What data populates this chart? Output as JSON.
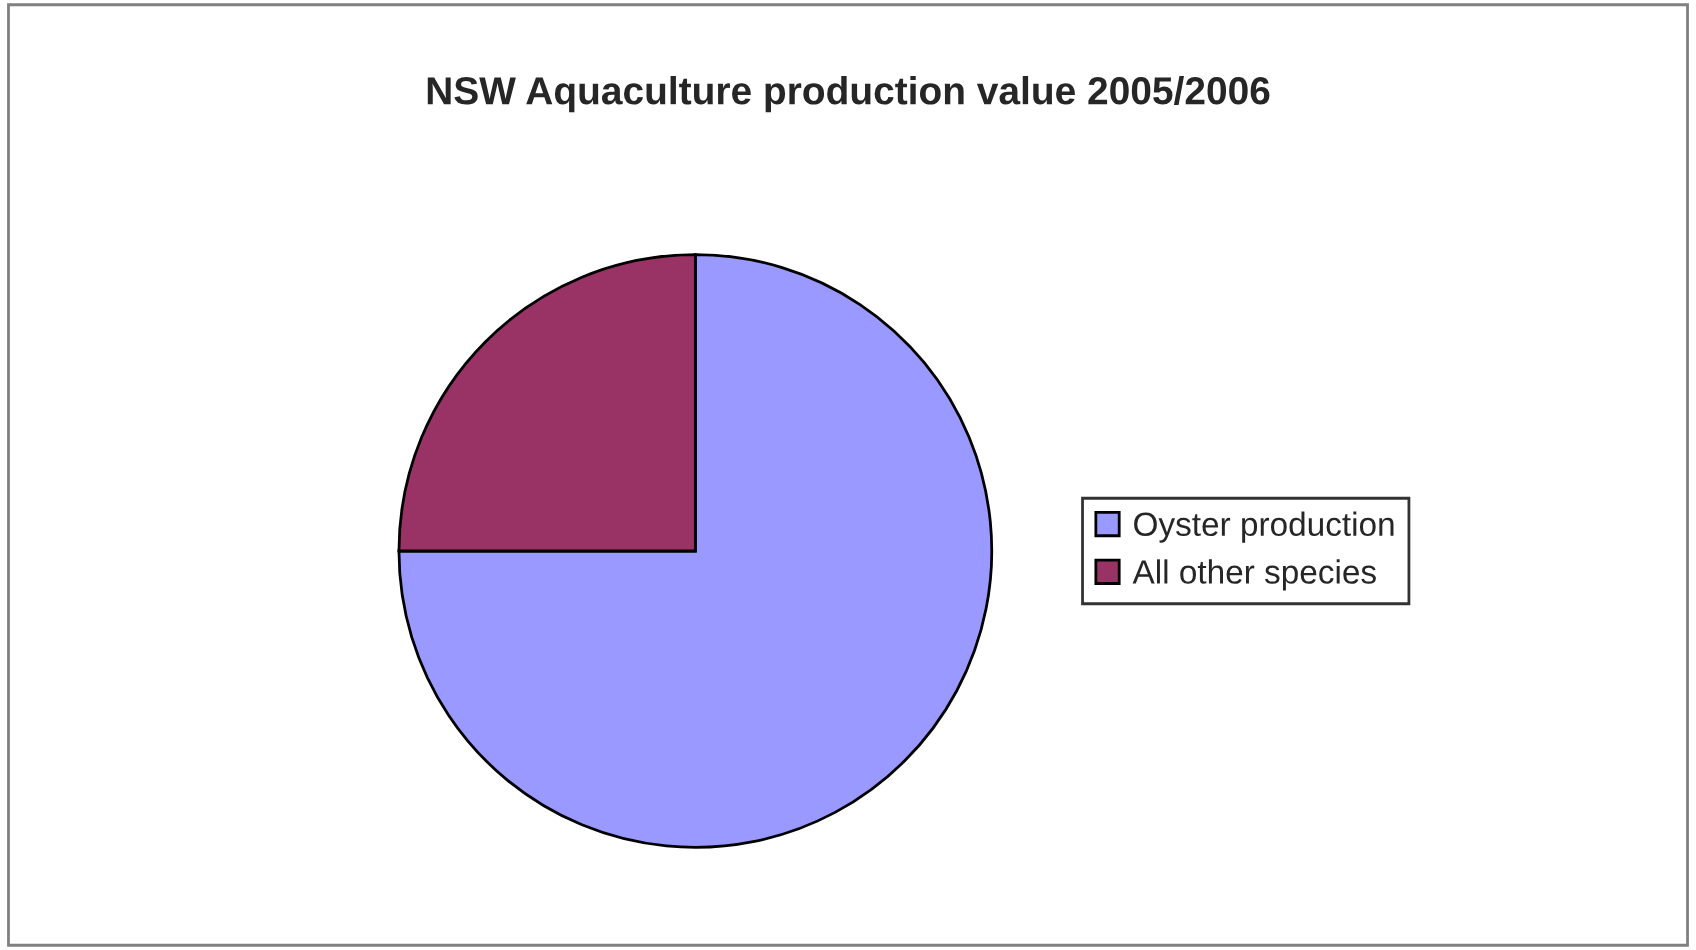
{
  "chart_data": {
    "type": "pie",
    "title": "NSW Aquaculture production value 2005/2006",
    "categories": [
      "Oyster production",
      "All other species"
    ],
    "values": [
      75,
      25
    ],
    "colors": [
      "#9999ff",
      "#993366"
    ],
    "legend": "right"
  }
}
